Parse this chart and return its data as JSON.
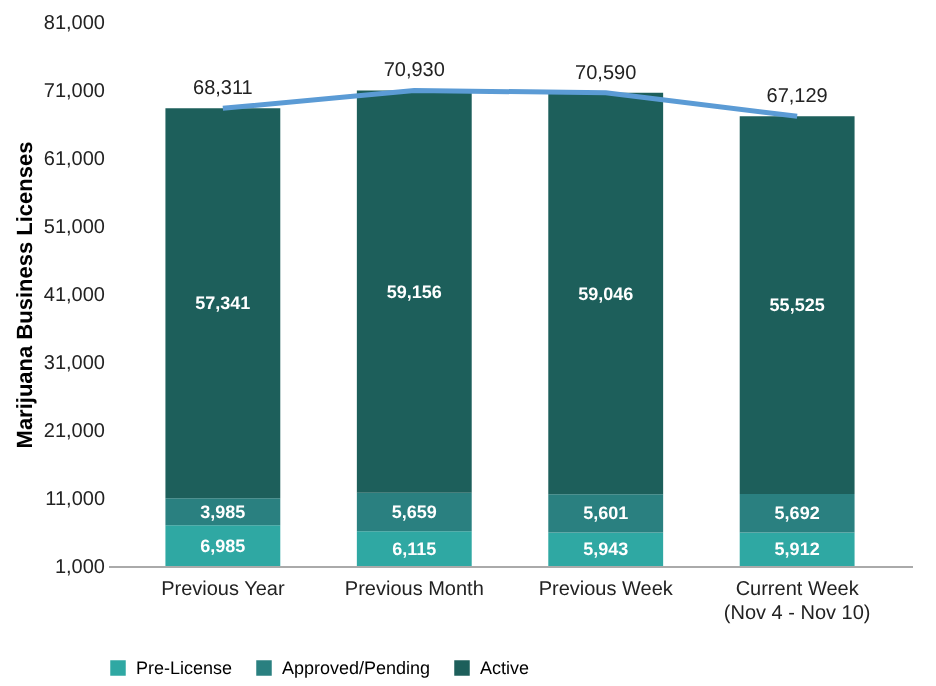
{
  "chart_data": {
    "type": "bar",
    "stacked": true,
    "ylabel": "Marijuana Business Licenses",
    "categories": [
      "Previous Year",
      "Previous Month",
      "Previous Week",
      "Current Week\n(Nov 4 - Nov 10)"
    ],
    "series": [
      {
        "name": "Pre-License",
        "color": "#2fa8a3",
        "values": [
          6985,
          6115,
          5943,
          5912
        ],
        "value_labels": [
          "6,985",
          "6,115",
          "5,943",
          "5,912"
        ]
      },
      {
        "name": "Approved/Pending",
        "color": "#2a8080",
        "values": [
          3985,
          5659,
          5601,
          5692
        ],
        "value_labels": [
          "3,985",
          "5,659",
          "5,601",
          "5,692"
        ]
      },
      {
        "name": "Active",
        "color": "#1d5f5b",
        "values": [
          57341,
          59156,
          59046,
          55525
        ],
        "value_labels": [
          "57,341",
          "59,156",
          "59,046",
          "55,525"
        ]
      },
      {
        "type": "line",
        "color": "#5b9bd5",
        "values": [
          68311,
          70930,
          70590,
          67129
        ],
        "value_labels": [
          "68,311",
          "70,930",
          "70,590",
          "67,129"
        ]
      }
    ],
    "ylim": [
      1000,
      81000
    ],
    "yticks": [
      {
        "value": 1000,
        "label": "1,000"
      },
      {
        "value": 11000,
        "label": "11,000"
      },
      {
        "value": 21000,
        "label": "21,000"
      },
      {
        "value": 31000,
        "label": "31,000"
      },
      {
        "value": 41000,
        "label": "41,000"
      },
      {
        "value": 51000,
        "label": "51,000"
      },
      {
        "value": 61000,
        "label": "61,000"
      },
      {
        "value": 71000,
        "label": "71,000"
      },
      {
        "value": 81000,
        "label": "81,000"
      }
    ],
    "data_labels": true,
    "legend": "bottom",
    "grid": false
  }
}
